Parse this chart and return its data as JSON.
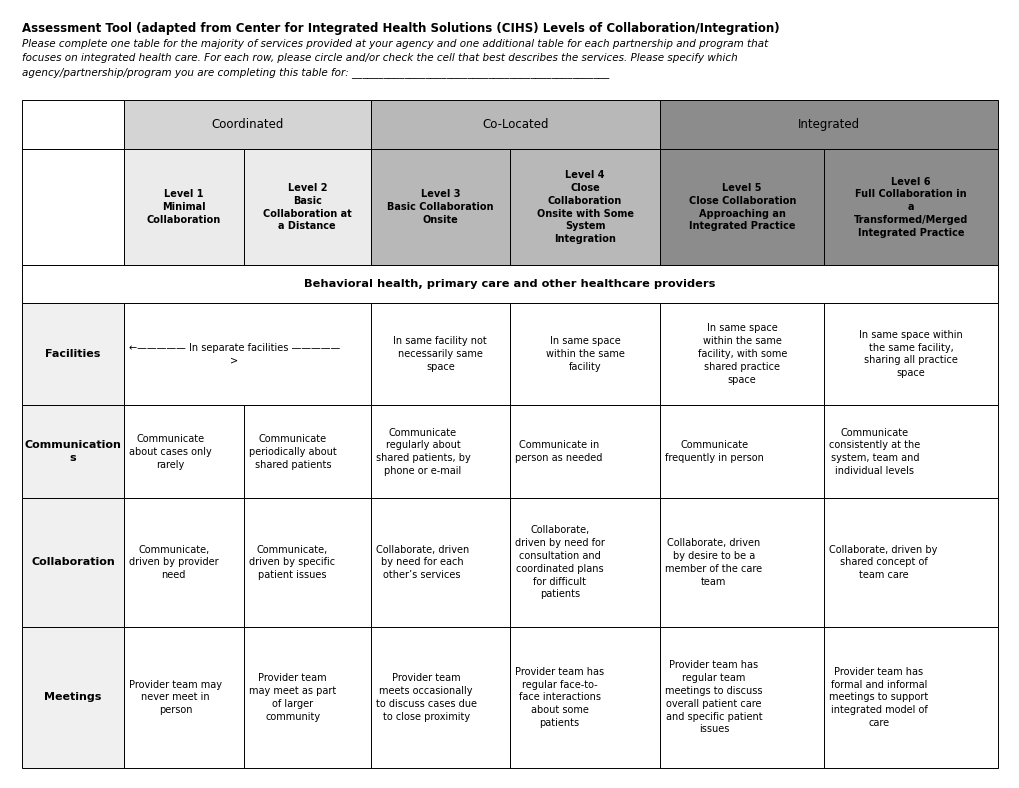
{
  "title_bold": "Assessment Tool (adapted from Center for Integrated Health Solutions (CIHS) Levels of Collaboration/Integration)",
  "subtitle_line1": "Please complete one table for the majority of services provided at your agency and one additional table for each partnership and program that",
  "subtitle_line2": "focuses on integrated health care. For each row, please circle and/or check the cell that best describes the services. Please specify which",
  "subtitle_line3": "agency/partnership/program you are completing this table for: _________________________________________________",
  "header_row2": [
    "",
    "Level 1\nMinimal\nCollaboration",
    "Level 2\nBasic\nCollaboration at\na Distance",
    "Level 3\nBasic Collaboration\nOnsite",
    "Level 4\nClose\nCollaboration\nOnsite with Some\nSystem\nIntegration",
    "Level 5\nClose Collaboration\nApproaching an\nIntegrated Practice",
    "Level 6\nFull Collaboration in\na\nTransformed/Merged\nIntegrated Practice"
  ],
  "subheader": "Behavioral health, primary care and other healthcare providers",
  "facilities_merged": "←————— In separate facilities —————\n>",
  "rows": [
    {
      "label": "Facilities",
      "cells": [
        "←————— In separate facilities —————\n>",
        "In same facility not\nnecessarily same\nspace",
        "In same space\nwithin the same\nfacility",
        "In same space\nwithin the same\nfacility, with some\nshared practice\nspace",
        "In same space within\nthe same facility,\nsharing all practice\nspace"
      ]
    },
    {
      "label": "Communication\ns",
      "cells": [
        "Communicate\nabout cases only\nrarely",
        "Communicate\nperiodically about\nshared patients",
        "Communicate\nregularly about\nshared patients, by\nphone or e-mail",
        "Communicate in\nperson as needed",
        "Communicate\nfrequently in person",
        "Communicate\nconsistently at the\nsystem, team and\nindividual levels"
      ]
    },
    {
      "label": "Collaboration",
      "cells": [
        "Communicate,\ndriven by provider\nneed",
        "Communicate,\ndriven by specific\npatient issues",
        "Collaborate, driven\nby need for each\nother’s services",
        "Collaborate,\ndriven by need for\nconsultation and\ncoordinated plans\nfor difficult\npatients",
        "Collaborate, driven\nby desire to be a\nmember of the care\nteam",
        "Collaborate, driven by\nshared concept of\nteam care"
      ]
    },
    {
      "label": "Meetings",
      "cells": [
        "Provider team may\nnever meet in\nperson",
        "Provider team\nmay meet as part\nof larger\ncommunity",
        "Provider team\nmeets occasionally\nto discuss cases due\nto close proximity",
        "Provider team has\nregular face-to-\nface interactions\nabout some\npatients",
        "Provider team has\nregular team\nmeetings to discuss\noverall patient care\nand specific patient\nissues",
        "Provider team has\nformal and informal\nmeetings to support\nintegrated model of\ncare"
      ]
    }
  ],
  "light_gray": "#d4d4d4",
  "mid_gray": "#b8b8b8",
  "dark_gray": "#8c8c8c",
  "very_light": "#ebebeb",
  "white": "#ffffff",
  "row_label_bg": "#f0f0f0"
}
